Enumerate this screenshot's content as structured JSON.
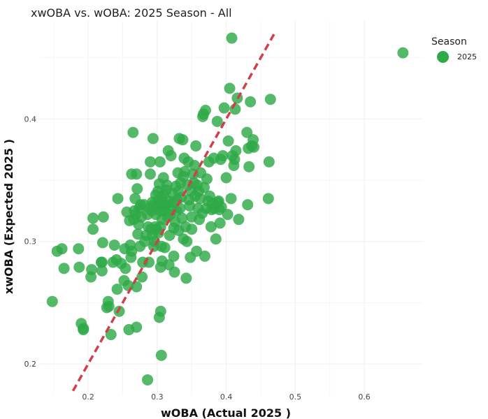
{
  "title": "xwOBA vs. wOBA: 2025 Season - All",
  "colors": {
    "points": "#2eaa47",
    "reference_line": "#d1404a",
    "grid": "#efefef"
  },
  "legend": {
    "title": "Season",
    "items": [
      {
        "label": "2025"
      }
    ]
  },
  "chart_data": {
    "type": "scatter",
    "title": "xwOBA vs. wOBA: 2025 Season - All",
    "xlabel": "wOBA (Actual 2025 )",
    "ylabel": "xwOBA (Expected 2025 )",
    "xlim": [
      0.13,
      0.685
    ],
    "ylim": [
      0.175,
      0.48
    ],
    "x_ticks": [
      0.2,
      0.3,
      0.4,
      0.5,
      0.6
    ],
    "x_tick_labels": [
      "0.2",
      "0.3",
      "0.4",
      "0.5",
      "0.6"
    ],
    "y_ticks": [
      0.2,
      0.3,
      0.4
    ],
    "y_tick_labels": [
      "0.2",
      "0.3",
      "0.4"
    ],
    "grid": true,
    "legend_position": "top-right",
    "reference_line": {
      "type": "y=x",
      "style": "dashed",
      "from": 0.178,
      "to": 0.472
    },
    "series": [
      {
        "name": "2025",
        "points": [
          [
            0.148,
            0.251
          ],
          [
            0.155,
            0.292
          ],
          [
            0.162,
            0.294
          ],
          [
            0.165,
            0.278
          ],
          [
            0.186,
            0.294
          ],
          [
            0.187,
            0.279
          ],
          [
            0.19,
            0.233
          ],
          [
            0.193,
            0.229
          ],
          [
            0.193,
            0.228
          ],
          [
            0.204,
            0.271
          ],
          [
            0.205,
            0.277
          ],
          [
            0.207,
            0.31
          ],
          [
            0.207,
            0.319
          ],
          [
            0.219,
            0.283
          ],
          [
            0.22,
            0.283
          ],
          [
            0.22,
            0.276
          ],
          [
            0.221,
            0.299
          ],
          [
            0.222,
            0.32
          ],
          [
            0.227,
            0.246
          ],
          [
            0.229,
            0.251
          ],
          [
            0.23,
            0.247
          ],
          [
            0.233,
            0.224
          ],
          [
            0.236,
            0.283
          ],
          [
            0.238,
            0.297
          ],
          [
            0.241,
            0.285
          ],
          [
            0.242,
            0.261
          ],
          [
            0.243,
            0.335
          ],
          [
            0.245,
            0.243
          ],
          [
            0.248,
            0.282
          ],
          [
            0.252,
            0.268
          ],
          [
            0.253,
            0.294
          ],
          [
            0.254,
            0.278
          ],
          [
            0.256,
            0.324
          ],
          [
            0.258,
            0.264
          ],
          [
            0.259,
            0.228
          ],
          [
            0.26,
            0.317
          ],
          [
            0.261,
            0.297
          ],
          [
            0.262,
            0.287
          ],
          [
            0.263,
            0.292
          ],
          [
            0.263,
            0.355
          ],
          [
            0.265,
            0.389
          ],
          [
            0.266,
            0.318
          ],
          [
            0.267,
            0.325
          ],
          [
            0.268,
            0.335
          ],
          [
            0.269,
            0.322
          ],
          [
            0.27,
            0.23
          ],
          [
            0.27,
            0.263
          ],
          [
            0.27,
            0.355
          ],
          [
            0.271,
            0.343
          ],
          [
            0.272,
            0.306
          ],
          [
            0.273,
            0.314
          ],
          [
            0.274,
            0.327
          ],
          [
            0.275,
            0.296
          ],
          [
            0.276,
            0.33
          ],
          [
            0.277,
            0.32
          ],
          [
            0.278,
            0.271
          ],
          [
            0.279,
            0.283
          ],
          [
            0.281,
            0.33
          ],
          [
            0.282,
            0.3
          ],
          [
            0.284,
            0.305
          ],
          [
            0.286,
            0.187
          ],
          [
            0.286,
            0.322
          ],
          [
            0.287,
            0.312
          ],
          [
            0.288,
            0.283
          ],
          [
            0.289,
            0.327
          ],
          [
            0.29,
            0.355
          ],
          [
            0.29,
            0.365
          ],
          [
            0.291,
            0.31
          ],
          [
            0.292,
            0.325
          ],
          [
            0.293,
            0.332
          ],
          [
            0.293,
            0.305
          ],
          [
            0.294,
            0.384
          ],
          [
            0.295,
            0.296
          ],
          [
            0.295,
            0.33
          ],
          [
            0.296,
            0.3
          ],
          [
            0.297,
            0.312
          ],
          [
            0.298,
            0.322
          ],
          [
            0.298,
            0.338
          ],
          [
            0.299,
            0.31
          ],
          [
            0.3,
            0.329
          ],
          [
            0.301,
            0.341
          ],
          [
            0.302,
            0.334
          ],
          [
            0.302,
            0.307
          ],
          [
            0.303,
            0.238
          ],
          [
            0.303,
            0.347
          ],
          [
            0.304,
            0.365
          ],
          [
            0.304,
            0.325
          ],
          [
            0.305,
            0.243
          ],
          [
            0.305,
            0.279
          ],
          [
            0.305,
            0.312
          ],
          [
            0.306,
            0.207
          ],
          [
            0.306,
            0.335
          ],
          [
            0.306,
            0.296
          ],
          [
            0.307,
            0.284
          ],
          [
            0.307,
            0.318
          ],
          [
            0.308,
            0.33
          ],
          [
            0.309,
            0.352
          ],
          [
            0.309,
            0.338
          ],
          [
            0.31,
            0.325
          ],
          [
            0.311,
            0.295
          ],
          [
            0.312,
            0.329
          ],
          [
            0.313,
            0.342
          ],
          [
            0.313,
            0.33
          ],
          [
            0.314,
            0.346
          ],
          [
            0.315,
            0.32
          ],
          [
            0.316,
            0.374
          ],
          [
            0.317,
            0.333
          ],
          [
            0.317,
            0.281
          ],
          [
            0.318,
            0.305
          ],
          [
            0.319,
            0.322
          ],
          [
            0.32,
            0.37
          ],
          [
            0.321,
            0.326
          ],
          [
            0.322,
            0.339
          ],
          [
            0.323,
            0.332
          ],
          [
            0.324,
            0.311
          ],
          [
            0.324,
            0.288
          ],
          [
            0.325,
            0.275
          ],
          [
            0.326,
            0.316
          ],
          [
            0.327,
            0.345
          ],
          [
            0.328,
            0.325
          ],
          [
            0.329,
            0.334
          ],
          [
            0.33,
            0.356
          ],
          [
            0.331,
            0.341
          ],
          [
            0.331,
            0.309
          ],
          [
            0.332,
            0.384
          ],
          [
            0.333,
            0.327
          ],
          [
            0.334,
            0.348
          ],
          [
            0.335,
            0.336
          ],
          [
            0.336,
            0.319
          ],
          [
            0.337,
            0.383
          ],
          [
            0.338,
            0.353
          ],
          [
            0.338,
            0.302
          ],
          [
            0.339,
            0.368
          ],
          [
            0.34,
            0.357
          ],
          [
            0.341,
            0.312
          ],
          [
            0.342,
            0.27
          ],
          [
            0.343,
            0.3
          ],
          [
            0.344,
            0.346
          ],
          [
            0.345,
            0.365
          ],
          [
            0.346,
            0.334
          ],
          [
            0.347,
            0.329
          ],
          [
            0.348,
            0.287
          ],
          [
            0.349,
            0.341
          ],
          [
            0.35,
            0.32
          ],
          [
            0.35,
            0.31
          ],
          [
            0.352,
            0.355
          ],
          [
            0.353,
            0.348
          ],
          [
            0.354,
            0.362
          ],
          [
            0.355,
            0.337
          ],
          [
            0.356,
            0.378
          ],
          [
            0.357,
            0.292
          ],
          [
            0.358,
            0.346
          ],
          [
            0.359,
            0.327
          ],
          [
            0.36,
            0.341
          ],
          [
            0.361,
            0.318
          ],
          [
            0.362,
            0.335
          ],
          [
            0.363,
            0.356
          ],
          [
            0.365,
            0.323
          ],
          [
            0.366,
            0.402
          ],
          [
            0.367,
            0.404
          ],
          [
            0.368,
            0.344
          ],
          [
            0.369,
            0.288
          ],
          [
            0.37,
            0.407
          ],
          [
            0.371,
            0.327
          ],
          [
            0.372,
            0.351
          ],
          [
            0.374,
            0.333
          ],
          [
            0.375,
            0.365
          ],
          [
            0.376,
            0.337
          ],
          [
            0.378,
            0.312
          ],
          [
            0.379,
            0.326
          ],
          [
            0.38,
            0.331
          ],
          [
            0.382,
            0.368
          ],
          [
            0.383,
            0.327
          ],
          [
            0.385,
            0.302
          ],
          [
            0.387,
            0.398
          ],
          [
            0.388,
            0.332
          ],
          [
            0.389,
            0.333
          ],
          [
            0.39,
            0.326
          ],
          [
            0.391,
            0.315
          ],
          [
            0.392,
            0.367
          ],
          [
            0.393,
            0.328
          ],
          [
            0.395,
            0.37
          ],
          [
            0.397,
            0.409
          ],
          [
            0.4,
            0.352
          ],
          [
            0.402,
            0.322
          ],
          [
            0.403,
            0.382
          ],
          [
            0.405,
            0.425
          ],
          [
            0.407,
            0.335
          ],
          [
            0.408,
            0.466
          ],
          [
            0.409,
            0.37
          ],
          [
            0.411,
            0.362
          ],
          [
            0.412,
            0.367
          ],
          [
            0.413,
            0.408
          ],
          [
            0.414,
            0.374
          ],
          [
            0.416,
            0.417
          ],
          [
            0.418,
            0.318
          ],
          [
            0.43,
            0.389
          ],
          [
            0.431,
            0.33
          ],
          [
            0.432,
            0.376
          ],
          [
            0.433,
            0.361
          ],
          [
            0.435,
            0.414
          ],
          [
            0.437,
            0.378
          ],
          [
            0.439,
            0.383
          ],
          [
            0.44,
            0.377
          ],
          [
            0.461,
            0.335
          ],
          [
            0.462,
            0.365
          ],
          [
            0.464,
            0.416
          ],
          [
            0.656,
            0.454
          ]
        ]
      }
    ]
  }
}
